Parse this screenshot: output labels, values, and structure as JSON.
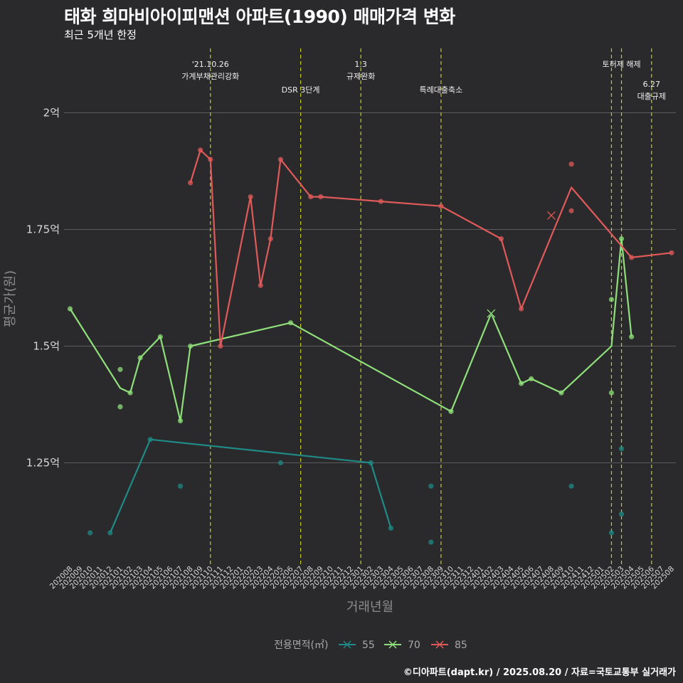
{
  "header": {
    "title": "태화 희마비아이피맨션 아파트(1990) 매매가격 변화",
    "subtitle": "최근 5개년 한정"
  },
  "footer": {
    "caption": "©디아파트(dapt.kr) / 2025.08.20 / 자료=국토교통부 실거래가"
  },
  "colors": {
    "background": "#2a2a2c",
    "grid": "#5c5c5e",
    "event_line": "#c8cc1e",
    "series_55": "#1f8a86",
    "series_70": "#8fe07a",
    "series_85": "#e05a5a"
  },
  "chart_data": {
    "type": "line",
    "xlabel": "거래년월",
    "ylabel": "평균가(원)",
    "ylim": [
      1.04,
      2.13
    ],
    "yticks": [
      {
        "value": 1.25,
        "label": "1.25억"
      },
      {
        "value": 1.5,
        "label": "1.5억"
      },
      {
        "value": 1.75,
        "label": "1.75억"
      },
      {
        "value": 2.0,
        "label": "2억"
      }
    ],
    "categories": [
      "202008",
      "202009",
      "202010",
      "202011",
      "202012",
      "202101",
      "202102",
      "202103",
      "202104",
      "202105",
      "202106",
      "202107",
      "202108",
      "202109",
      "202110",
      "202111",
      "202112",
      "202201",
      "202202",
      "202203",
      "202204",
      "202205",
      "202206",
      "202207",
      "202208",
      "202209",
      "202210",
      "202211",
      "202212",
      "202301",
      "202302",
      "202303",
      "202304",
      "202305",
      "202306",
      "202307",
      "202308",
      "202309",
      "202310",
      "202311",
      "202312",
      "202401",
      "202402",
      "202403",
      "202404",
      "202405",
      "202406",
      "202407",
      "202408",
      "202409",
      "202410",
      "202411",
      "202412",
      "202501",
      "202502",
      "202503",
      "202504",
      "202505",
      "202506",
      "202507",
      "202508"
    ],
    "legend": {
      "title": "전용면적(㎡)",
      "position": "bottom"
    },
    "series": [
      {
        "name": "55",
        "color": "#1f8a86",
        "line": [
          [
            "202012",
            1.1
          ],
          [
            "202104",
            1.3
          ],
          [
            "202302",
            1.25
          ],
          [
            "202304",
            1.11
          ]
        ],
        "points": [
          [
            "202010",
            1.1
          ],
          [
            "202012",
            1.1
          ],
          [
            "202104",
            1.3
          ],
          [
            "202107",
            1.2
          ],
          [
            "202205",
            1.25
          ],
          [
            "202302",
            1.25
          ],
          [
            "202304",
            1.11
          ],
          [
            "202308",
            1.2
          ],
          [
            "202308",
            1.08
          ],
          [
            "202410",
            1.2
          ],
          [
            "202502",
            1.1
          ],
          [
            "202503",
            1.28
          ],
          [
            "202503",
            1.14
          ]
        ]
      },
      {
        "name": "70",
        "color": "#8fe07a",
        "line": [
          [
            "202008",
            1.58
          ],
          [
            "202101",
            1.41
          ],
          [
            "202102",
            1.4
          ],
          [
            "202103",
            1.475
          ],
          [
            "202105",
            1.52
          ],
          [
            "202107",
            1.34
          ],
          [
            "202108",
            1.5
          ],
          [
            "202206",
            1.55
          ],
          [
            "202310",
            1.36
          ],
          [
            "202402",
            1.57
          ],
          [
            "202405",
            1.42
          ],
          [
            "202406",
            1.43
          ],
          [
            "202409",
            1.4
          ],
          [
            "202502",
            1.5
          ],
          [
            "202503",
            1.73
          ],
          [
            "202504",
            1.52
          ]
        ],
        "points": [
          [
            "202008",
            1.58
          ],
          [
            "202101",
            1.45
          ],
          [
            "202101",
            1.37
          ],
          [
            "202102",
            1.4
          ],
          [
            "202103",
            1.475
          ],
          [
            "202105",
            1.52
          ],
          [
            "202107",
            1.34
          ],
          [
            "202108",
            1.5
          ],
          [
            "202206",
            1.55
          ],
          [
            "202310",
            1.36
          ],
          [
            "202405",
            1.42
          ],
          [
            "202406",
            1.43
          ],
          [
            "202409",
            1.4
          ],
          [
            "202502",
            1.6
          ],
          [
            "202502",
            1.4
          ],
          [
            "202503",
            1.73
          ],
          [
            "202504",
            1.52
          ]
        ],
        "crosses": [
          [
            "202402",
            1.57
          ]
        ]
      },
      {
        "name": "85",
        "color": "#e05a5a",
        "line": [
          [
            "202108",
            1.85
          ],
          [
            "202109",
            1.92
          ],
          [
            "202110",
            1.9
          ],
          [
            "202111",
            1.5
          ],
          [
            "202202",
            1.82
          ],
          [
            "202203",
            1.63
          ],
          [
            "202204",
            1.73
          ],
          [
            "202205",
            1.9
          ],
          [
            "202208",
            1.82
          ],
          [
            "202209",
            1.82
          ],
          [
            "202303",
            1.81
          ],
          [
            "202309",
            1.8
          ],
          [
            "202403",
            1.73
          ],
          [
            "202405",
            1.58
          ],
          [
            "202410",
            1.84
          ],
          [
            "202504",
            1.69
          ],
          [
            "202508",
            1.7
          ]
        ],
        "points": [
          [
            "202108",
            1.85
          ],
          [
            "202109",
            1.92
          ],
          [
            "202110",
            1.9
          ],
          [
            "202111",
            1.5
          ],
          [
            "202202",
            1.82
          ],
          [
            "202203",
            1.63
          ],
          [
            "202204",
            1.73
          ],
          [
            "202205",
            1.9
          ],
          [
            "202208",
            1.82
          ],
          [
            "202209",
            1.82
          ],
          [
            "202303",
            1.81
          ],
          [
            "202309",
            1.8
          ],
          [
            "202403",
            1.73
          ],
          [
            "202405",
            1.58
          ],
          [
            "202410",
            1.89
          ],
          [
            "202410",
            1.79
          ],
          [
            "202504",
            1.69
          ],
          [
            "202508",
            1.7
          ]
        ],
        "crosses": [
          [
            "202408",
            1.78
          ]
        ]
      }
    ],
    "annotations": [
      {
        "x": "202110",
        "lines": [
          "'21.10.26",
          "가계부채관리강화"
        ],
        "row": 0
      },
      {
        "x": "202207",
        "lines": [
          "DSR 3단계"
        ],
        "row": 1
      },
      {
        "x": "202301",
        "lines": [
          "1.3",
          "규제완화"
        ],
        "row": 0
      },
      {
        "x": "202309",
        "lines": [
          "특례대출축소"
        ],
        "row": 1
      },
      {
        "x": "202502",
        "lines": [],
        "row": 0
      },
      {
        "x": "202503",
        "lines": [
          "토허제 해제"
        ],
        "row": 0
      },
      {
        "x": "202506",
        "lines": [
          "6.27",
          "대출규제"
        ],
        "row": 1
      }
    ]
  }
}
